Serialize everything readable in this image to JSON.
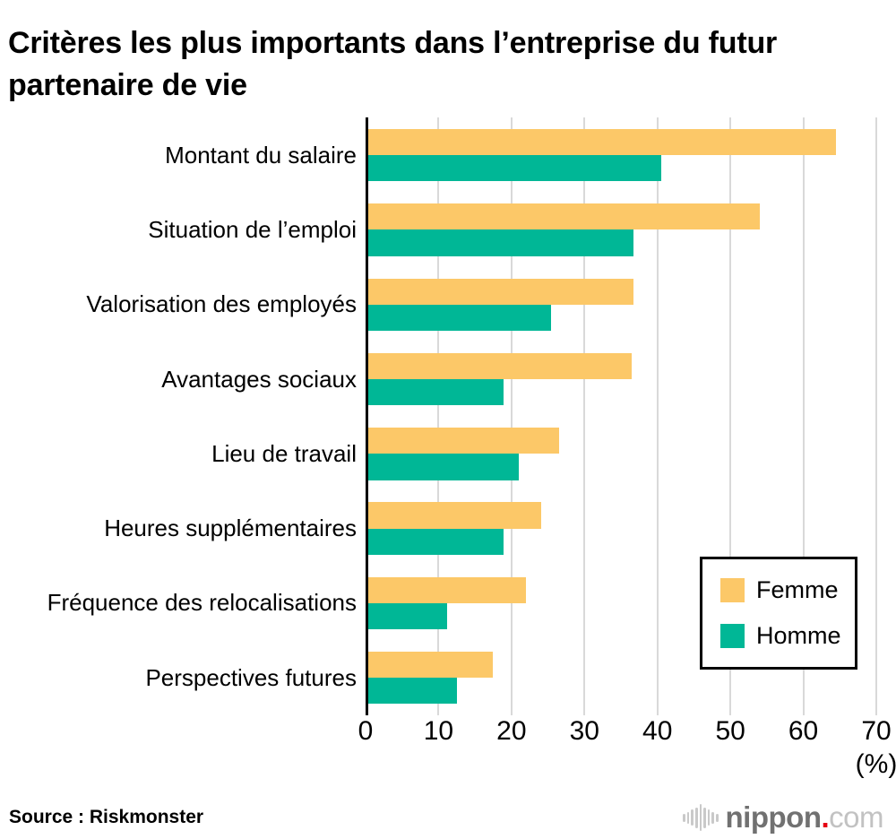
{
  "chart_data": {
    "type": "bar",
    "orientation": "horizontal",
    "title": "Critères les plus importants dans l’entreprise du futur partenaire de vie",
    "categories": [
      "Montant du salaire",
      "Situation de l’emploi",
      "Valorisation des employés",
      "Avantages sociaux",
      "Lieu de travail",
      "Heures supplémentaires",
      "Fréquence des relocalisations",
      "Perspectives futures"
    ],
    "series": [
      {
        "name": "Femme",
        "color": "#FCC868",
        "values": [
          64.1,
          53.7,
          36.4,
          36.1,
          26.2,
          23.7,
          21.6,
          17.1
        ]
      },
      {
        "name": "Homme",
        "color": "#00B796",
        "values": [
          40.1,
          36.4,
          25.1,
          18.5,
          20.6,
          18.5,
          10.8,
          12.2
        ]
      }
    ],
    "xlim": [
      0,
      70
    ],
    "xticks": [
      0,
      10,
      20,
      30,
      40,
      50,
      60,
      70
    ],
    "x_unit_label": "(%)",
    "grid": true,
    "gridline_color": "#d9d9d9",
    "axis_color": "#000000",
    "legend_position": "inside-right"
  },
  "footer": {
    "source": "Source : Riskmonster",
    "logo": {
      "icon": "soundwave-icon",
      "text_main": "nippon",
      "text_dot": ".",
      "text_suffix": "com",
      "dot_color": "#e60012"
    }
  }
}
